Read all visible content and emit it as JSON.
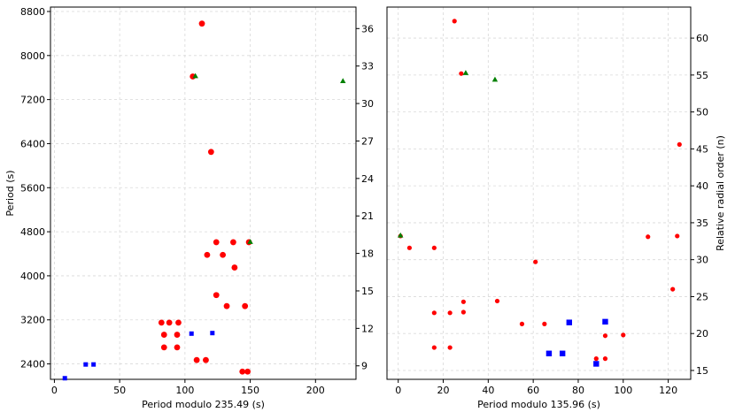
{
  "chart_data": [
    {
      "type": "scatter",
      "xlabel": "Period modulo 235.49 (s)",
      "ylabel": "Period (s)",
      "y2label": "",
      "xlim": [
        -3,
        231
      ],
      "ylim": [
        2120,
        8880
      ],
      "xticks": [
        0,
        50,
        100,
        150,
        200
      ],
      "yticks": [
        2400,
        3200,
        4000,
        4800,
        5600,
        6400,
        7200,
        8000,
        8800
      ],
      "y2ticks": [
        9,
        12,
        15,
        18,
        21,
        24,
        27,
        30,
        33,
        36
      ],
      "grid": true,
      "series": [
        {
          "name": "red-circles",
          "marker": "circle",
          "color": "#ff0000",
          "points": [
            [
              113,
              8580
            ],
            [
              106,
              7620
            ],
            [
              120,
              6250
            ],
            [
              124,
              4610
            ],
            [
              137,
              4610
            ],
            [
              149,
              4610
            ],
            [
              117,
              4380
            ],
            [
              129,
              4380
            ],
            [
              138,
              4150
            ],
            [
              124,
              3650
            ],
            [
              132,
              3450
            ],
            [
              146,
              3450
            ],
            [
              82,
              3150
            ],
            [
              88,
              3150
            ],
            [
              95,
              3150
            ],
            [
              84,
              2930
            ],
            [
              94,
              2930
            ],
            [
              84,
              2700
            ],
            [
              94,
              2700
            ],
            [
              109,
              2470
            ],
            [
              116,
              2470
            ],
            [
              144,
              2260
            ],
            [
              148,
              2260
            ]
          ]
        },
        {
          "name": "green-triangles",
          "marker": "triangle",
          "color": "#008000",
          "points": [
            [
              108,
              7630
            ],
            [
              150,
              4620
            ],
            [
              221,
              7540
            ]
          ]
        },
        {
          "name": "blue-squares",
          "marker": "square",
          "color": "#0000ff",
          "points": [
            [
              8,
              2140
            ],
            [
              24,
              2390
            ],
            [
              30,
              2390
            ],
            [
              105,
              2950
            ],
            [
              121,
              2960
            ]
          ]
        }
      ]
    },
    {
      "type": "scatter",
      "xlabel": "Period modulo 135.96 (s)",
      "ylabel": "",
      "y2label": "Relative radial order (n)",
      "xlim": [
        -5,
        130
      ],
      "ylim": [
        13.8,
        64.2
      ],
      "xticks": [
        0,
        20,
        40,
        60,
        80,
        100,
        120
      ],
      "yticks": [],
      "y2ticks": [
        15,
        20,
        25,
        30,
        35,
        40,
        45,
        50,
        55,
        60
      ],
      "grid": true,
      "series": [
        {
          "name": "red-circles",
          "marker": "circle",
          "color": "#ff0000",
          "points": [
            [
              25,
              62.3
            ],
            [
              28,
              55.2
            ],
            [
              125,
              45.6
            ],
            [
              1,
              33.2
            ],
            [
              111,
              33.1
            ],
            [
              124,
              33.2
            ],
            [
              5,
              31.6
            ],
            [
              16,
              31.6
            ],
            [
              61,
              29.7
            ],
            [
              122,
              26.0
            ],
            [
              29,
              24.3
            ],
            [
              44,
              24.4
            ],
            [
              16,
              22.8
            ],
            [
              23,
              22.8
            ],
            [
              29,
              22.9
            ],
            [
              55,
              21.3
            ],
            [
              65,
              21.3
            ],
            [
              92,
              19.7
            ],
            [
              100,
              19.8
            ],
            [
              16,
              18.1
            ],
            [
              23,
              18.1
            ],
            [
              88,
              16.6
            ],
            [
              92,
              16.6
            ]
          ]
        },
        {
          "name": "green-triangles",
          "marker": "triangle",
          "color": "#008000",
          "points": [
            [
              1,
              33.3
            ],
            [
              30,
              55.3
            ],
            [
              43,
              54.4
            ]
          ]
        },
        {
          "name": "blue-squares",
          "marker": "square",
          "color": "#0000ff",
          "points": [
            [
              76,
              21.5
            ],
            [
              92,
              21.6
            ],
            [
              67,
              17.3
            ],
            [
              73,
              17.3
            ],
            [
              88,
              15.9
            ]
          ]
        }
      ]
    }
  ]
}
